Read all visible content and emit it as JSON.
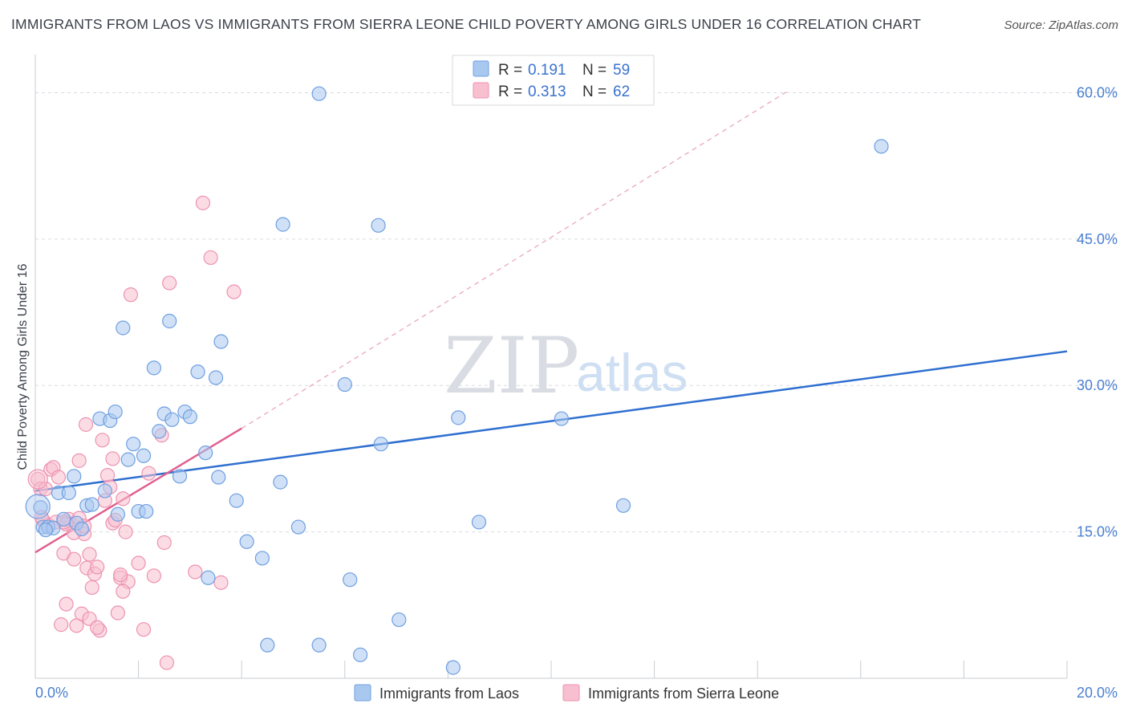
{
  "header": {
    "title": "IMMIGRANTS FROM LAOS VS IMMIGRANTS FROM SIERRA LEONE CHILD POVERTY AMONG GIRLS UNDER 16 CORRELATION CHART",
    "source": "Source: ZipAtlas.com"
  },
  "watermark": {
    "zip": "ZIP",
    "atlas": "atlas"
  },
  "colors": {
    "laos_fill": "#a9c8f0",
    "laos_stroke": "#6f9fe0",
    "laos_line": "#2f6fd0",
    "sl_fill": "#f7bfd0",
    "sl_stroke": "#ee92b0",
    "sl_line": "#e0608f",
    "tick_text": "#4a7fd0",
    "grid": "#d7dbe2"
  },
  "chart_data": {
    "type": "scatter",
    "title": "IMMIGRANTS FROM LAOS VS IMMIGRANTS FROM SIERRA LEONE CHILD POVERTY AMONG GIRLS UNDER 16 CORRELATION CHART",
    "xlabel": "",
    "ylabel": "Child Poverty Among Girls Under 16",
    "xlim": [
      0,
      20
    ],
    "ylim": [
      0,
      63
    ],
    "x_tick_labels": [
      "0.0%",
      "20.0%"
    ],
    "y_ticks": [
      15,
      30,
      45,
      60
    ],
    "y_tick_labels": [
      "15.0%",
      "30.0%",
      "45.0%",
      "60.0%"
    ],
    "legend": [
      {
        "r_label": "R =",
        "r_value": "0.191",
        "n_label": "N =",
        "n_value": "59"
      },
      {
        "r_label": "R =",
        "r_value": "0.313",
        "n_label": "N =",
        "n_value": "62"
      }
    ],
    "series": [
      {
        "name": "Immigrants from Laos",
        "trend": {
          "x": [
            0,
            20
          ],
          "y": [
            19.2,
            33.5
          ],
          "style": "solid"
        },
        "points": [
          [
            0.1,
            17.5
          ],
          [
            0.15,
            15.5
          ],
          [
            0.25,
            15.5
          ],
          [
            0.35,
            15.4
          ],
          [
            0.45,
            19.0
          ],
          [
            0.55,
            16.3
          ],
          [
            0.65,
            19.0
          ],
          [
            0.75,
            20.7
          ],
          [
            0.8,
            15.9
          ],
          [
            0.9,
            15.3
          ],
          [
            1.0,
            17.7
          ],
          [
            1.1,
            17.8
          ],
          [
            1.25,
            26.6
          ],
          [
            1.45,
            26.4
          ],
          [
            1.55,
            27.3
          ],
          [
            1.7,
            35.9
          ],
          [
            1.8,
            22.4
          ],
          [
            1.9,
            24.0
          ],
          [
            2.1,
            22.8
          ],
          [
            2.3,
            31.8
          ],
          [
            2.4,
            25.3
          ],
          [
            2.5,
            27.1
          ],
          [
            2.6,
            36.6
          ],
          [
            2.65,
            26.5
          ],
          [
            2.8,
            20.7
          ],
          [
            2.9,
            27.3
          ],
          [
            3.0,
            26.8
          ],
          [
            3.15,
            31.4
          ],
          [
            3.3,
            23.1
          ],
          [
            3.35,
            10.3
          ],
          [
            3.5,
            30.8
          ],
          [
            3.55,
            20.6
          ],
          [
            3.6,
            34.5
          ],
          [
            3.9,
            18.2
          ],
          [
            4.1,
            14.0
          ],
          [
            4.4,
            12.3
          ],
          [
            4.5,
            3.4
          ],
          [
            4.75,
            20.1
          ],
          [
            4.8,
            46.5
          ],
          [
            5.1,
            15.5
          ],
          [
            5.5,
            3.4
          ],
          [
            5.5,
            59.9
          ],
          [
            6.0,
            30.1
          ],
          [
            6.1,
            10.1
          ],
          [
            6.3,
            2.4
          ],
          [
            6.65,
            46.4
          ],
          [
            6.7,
            24.0
          ],
          [
            7.05,
            6.0
          ],
          [
            8.1,
            1.1
          ],
          [
            8.2,
            26.7
          ],
          [
            8.6,
            16.0
          ],
          [
            10.2,
            26.6
          ],
          [
            11.4,
            17.7
          ],
          [
            16.4,
            54.5
          ],
          [
            1.6,
            16.8
          ],
          [
            1.35,
            19.2
          ],
          [
            2.0,
            17.1
          ],
          [
            2.15,
            17.1
          ],
          [
            0.2,
            15.2
          ]
        ]
      },
      {
        "name": "Immigrants from Sierra Leone",
        "trend": {
          "x": [
            0,
            4.0
          ],
          "y": [
            12.9,
            25.6
          ],
          "style": "solid",
          "extended_x": [
            4.0,
            14.6
          ],
          "extended_y": [
            25.6,
            60.2
          ],
          "extended_style": "dashed"
        },
        "points": [
          [
            0.05,
            20.4
          ],
          [
            0.1,
            19.4
          ],
          [
            0.15,
            16.2
          ],
          [
            0.2,
            19.4
          ],
          [
            0.25,
            15.7
          ],
          [
            0.3,
            21.4
          ],
          [
            0.35,
            21.6
          ],
          [
            0.4,
            16.0
          ],
          [
            0.45,
            20.6
          ],
          [
            0.5,
            5.5
          ],
          [
            0.55,
            12.8
          ],
          [
            0.6,
            7.6
          ],
          [
            0.65,
            16.3
          ],
          [
            0.7,
            15.8
          ],
          [
            0.75,
            12.2
          ],
          [
            0.8,
            5.4
          ],
          [
            0.85,
            22.3
          ],
          [
            0.9,
            6.6
          ],
          [
            0.95,
            14.8
          ],
          [
            1.0,
            11.3
          ],
          [
            1.05,
            6.1
          ],
          [
            1.1,
            9.3
          ],
          [
            1.15,
            10.7
          ],
          [
            1.2,
            11.4
          ],
          [
            1.25,
            4.9
          ],
          [
            1.3,
            24.4
          ],
          [
            1.35,
            18.2
          ],
          [
            1.4,
            20.8
          ],
          [
            1.45,
            19.6
          ],
          [
            1.5,
            15.9
          ],
          [
            1.55,
            16.2
          ],
          [
            1.6,
            6.7
          ],
          [
            1.65,
            10.3
          ],
          [
            1.7,
            18.4
          ],
          [
            1.75,
            15.0
          ],
          [
            1.8,
            9.9
          ],
          [
            1.85,
            39.3
          ],
          [
            2.0,
            11.8
          ],
          [
            2.1,
            5.0
          ],
          [
            2.2,
            21.0
          ],
          [
            2.3,
            10.5
          ],
          [
            2.45,
            24.9
          ],
          [
            2.5,
            13.9
          ],
          [
            2.55,
            1.6
          ],
          [
            2.6,
            40.5
          ],
          [
            3.1,
            10.9
          ],
          [
            3.25,
            48.7
          ],
          [
            3.4,
            43.1
          ],
          [
            3.6,
            9.8
          ],
          [
            3.85,
            39.6
          ],
          [
            0.12,
            16.5
          ],
          [
            1.2,
            5.2
          ],
          [
            0.98,
            26.0
          ],
          [
            1.65,
            10.6
          ],
          [
            0.75,
            14.9
          ],
          [
            1.5,
            22.5
          ],
          [
            0.6,
            15.8
          ],
          [
            1.05,
            12.7
          ],
          [
            1.7,
            8.9
          ],
          [
            0.55,
            16.0
          ],
          [
            0.85,
            16.4
          ],
          [
            0.95,
            15.6
          ]
        ]
      }
    ]
  },
  "bottom_legend": [
    "Immigrants from Laos",
    "Immigrants from Sierra Leone"
  ]
}
